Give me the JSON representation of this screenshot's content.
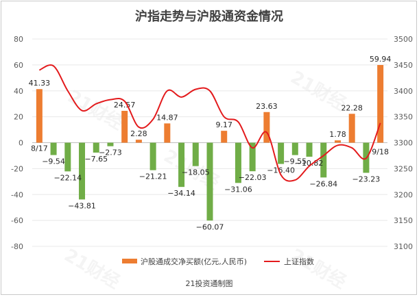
{
  "chart_data": {
    "type": "bar",
    "title": "沪指走势与沪股通资金情况",
    "source": "21投资通制图",
    "watermark": "21财经",
    "categories_labels": {
      "first": "8/17",
      "last": "9/18"
    },
    "ylim_left": [
      -80,
      80
    ],
    "left_ticks": [
      80,
      60,
      40,
      20,
      0,
      -20,
      -40,
      -60,
      -80
    ],
    "ylim_right": [
      3100,
      3500
    ],
    "right_ticks": [
      3500,
      3450,
      3400,
      3350,
      3300,
      3250,
      3200,
      3150,
      3100
    ],
    "series": [
      {
        "name": "沪股通成交净买额(亿元,人民币)",
        "kind": "bar",
        "pos_color": "#ED7D31",
        "neg_color": "#70AD47",
        "values": [
          41.33,
          -9.54,
          -22.14,
          -43.81,
          -7.65,
          -2.73,
          24.57,
          2.28,
          -21.21,
          14.87,
          -34.14,
          -18.05,
          -60.07,
          9.17,
          -31.06,
          -22.03,
          23.63,
          -16.4,
          -9.55,
          -10.82,
          -26.84,
          1.78,
          22.28,
          -23.23,
          59.94
        ],
        "labels": [
          "41.33",
          "−9.54",
          "−22.14",
          "−43.81",
          "−7.65",
          "−2.73",
          "24.57",
          "2.28",
          "−21.21",
          "14.87",
          "−34.14",
          "−18.05",
          "−60.07",
          "9.17",
          "−31.06",
          "−22.03",
          "23.63",
          "−16.40",
          "−9.55",
          "−10.82",
          "−26.84",
          "1.78",
          "22.28",
          "−23.23",
          "59.94"
        ]
      },
      {
        "name": "上证指数",
        "kind": "line",
        "color": "#E31A1C",
        "values": [
          3440,
          3448,
          3400,
          3362,
          3375,
          3383,
          3380,
          3330,
          3345,
          3400,
          3388,
          3403,
          3400,
          3350,
          3340,
          3290,
          3320,
          3238,
          3228,
          3255,
          3275,
          3295,
          3290,
          3270,
          3338
        ]
      }
    ],
    "legend_position": "bottom"
  }
}
